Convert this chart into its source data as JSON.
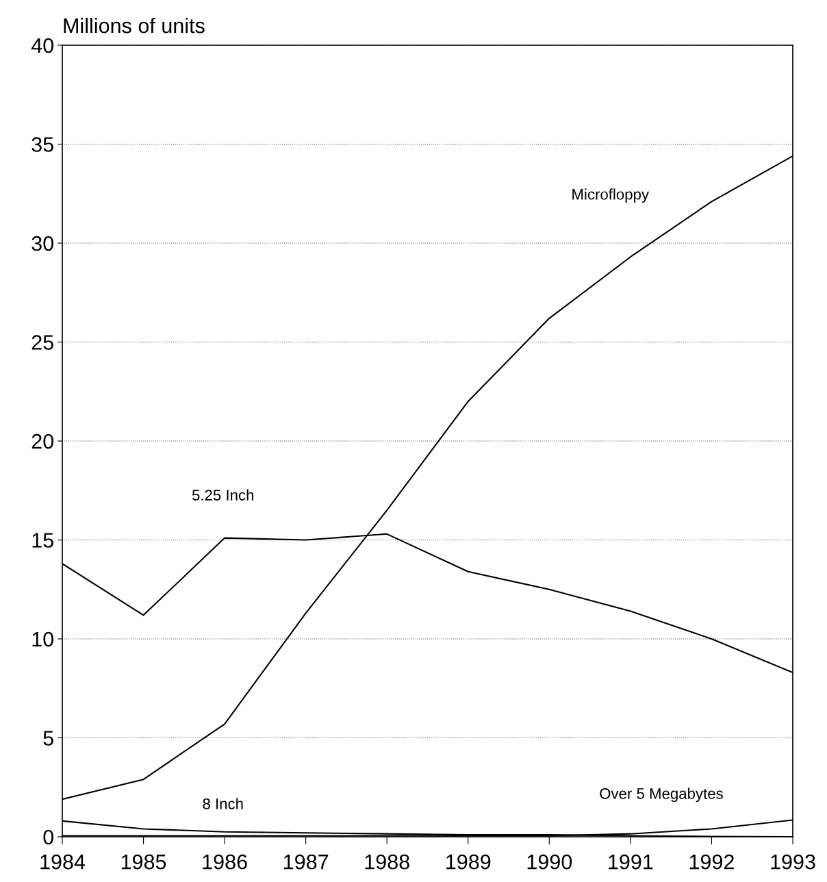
{
  "chart_data": {
    "type": "line",
    "ylabel": "Millions of units",
    "x": [
      1984,
      1985,
      1986,
      1987,
      1988,
      1989,
      1990,
      1991,
      1992,
      1993
    ],
    "series": [
      {
        "name": "Microfloppy",
        "color": "#000000",
        "values": [
          1.9,
          2.9,
          5.7,
          11.3,
          16.5,
          22.0,
          26.2,
          29.3,
          32.1,
          34.4
        ]
      },
      {
        "name": "5.25 Inch",
        "color": "#000000",
        "values": [
          13.8,
          11.2,
          15.1,
          15.0,
          15.3,
          13.4,
          12.5,
          11.4,
          10.0,
          8.3
        ]
      },
      {
        "name": "8 Inch",
        "color": "#000000",
        "values": [
          0.8,
          0.4,
          0.25,
          0.2,
          0.15,
          0.1,
          0.1,
          0.05,
          0.02,
          0.0
        ]
      },
      {
        "name": "Over 5 Megabytes",
        "color": "#000000",
        "values": [
          0.05,
          0.05,
          0.05,
          0.05,
          0.05,
          0.05,
          0.05,
          0.15,
          0.4,
          0.85
        ]
      }
    ],
    "xlim": [
      1984,
      1993
    ],
    "xticks": [
      1984,
      1985,
      1986,
      1987,
      1988,
      1989,
      1990,
      1991,
      1992,
      1993
    ],
    "ylim": [
      0,
      40
    ],
    "yticks": [
      0,
      5,
      10,
      15,
      20,
      25,
      30,
      35,
      40
    ],
    "grid": "y",
    "legend": false,
    "marker": "none",
    "line_style": "solid"
  }
}
